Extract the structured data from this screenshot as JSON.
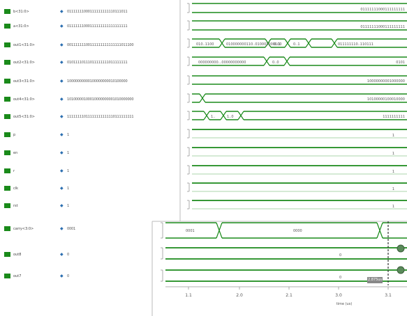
{
  "signals": [
    {
      "name": "b<31:0>",
      "value": "01111111000111111111110111011",
      "wave_text": "01111111000111111111"
    },
    {
      "name": "a<31:0>",
      "value": "01111111000111111111111111111",
      "wave_text": "01111111000111111111"
    },
    {
      "name": "out1<31:0>",
      "value": "00111111100111111111111111011100",
      "wave_text": "011..."
    },
    {
      "name": "out2<31:0>",
      "value": "01011110111011111111011111111",
      "wave_text": "0101"
    },
    {
      "name": "out3<31:0>",
      "value": "10000000000100000000010100000",
      "wave_text": "10000000001000000"
    },
    {
      "name": "out4<31:0>",
      "value": "10100000100010000000001010000000",
      "wave_text": "10100000100010000"
    },
    {
      "name": "out5<31:0>",
      "value": "11111111011111111111110111111111",
      "wave_text": "1111111111"
    },
    {
      "name": "p",
      "value": "1",
      "wave_text": "1"
    },
    {
      "name": "en",
      "value": "1",
      "wave_text": "1"
    },
    {
      "name": "r",
      "value": "1",
      "wave_text": "1"
    },
    {
      "name": "clk",
      "value": "1",
      "wave_text": "1"
    },
    {
      "name": "rst",
      "value": "1",
      "wave_text": "1"
    }
  ],
  "signals2": [
    {
      "name": "carry<3:0>",
      "value": "0001"
    },
    {
      "name": "out8",
      "value": "0"
    },
    {
      "name": "out7",
      "value": "0"
    }
  ],
  "bus_labels": {
    "out1_a": "010..1100",
    "out1_b": "010000000110..010001000100",
    "out1_c": "0..1",
    "out1_d": "0..1",
    "out1_e": "011111110..110111",
    "out2_a": "000000000...00000000000",
    "out2_b": "0..0",
    "out5_a": "1..",
    "out5_b": "1..0",
    "carry_a": "0001",
    "carry_b": "0000",
    "out8_mid": "0",
    "out7_mid": "0"
  },
  "axis": {
    "ticks": [
      "1.1",
      "2.0",
      "2.1",
      "3.0",
      "3.1"
    ],
    "unit": "time (us)"
  },
  "cursor_label": "2.875us",
  "colors": {
    "signal": "#1a8a1a",
    "swatch": "#1a8a1a"
  }
}
